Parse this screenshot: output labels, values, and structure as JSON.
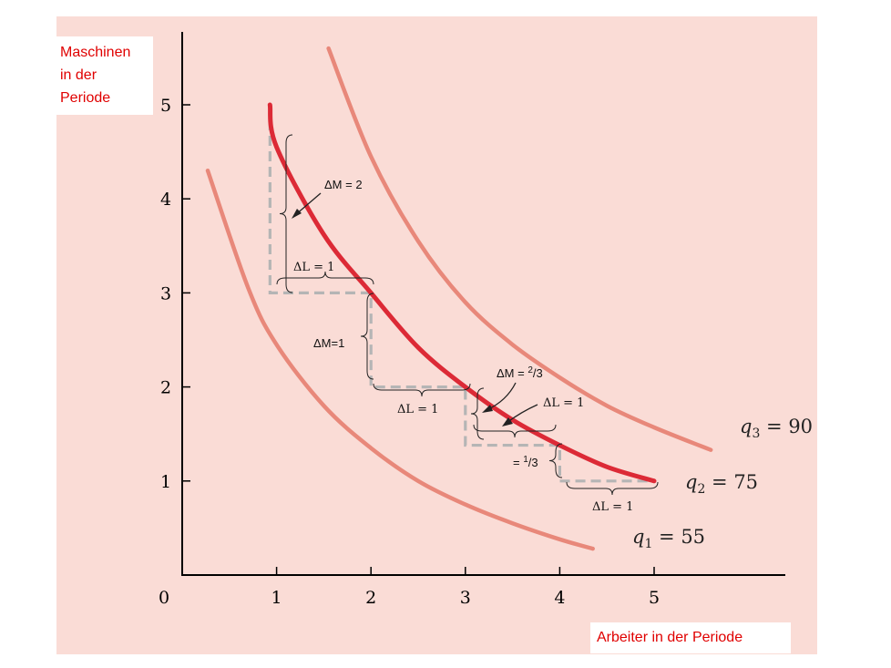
{
  "chart_data": {
    "type": "line",
    "title": "",
    "ylabel": "Maschinen\nin der\nPeriode",
    "xlabel": "Arbeiter in der Periode",
    "xlim": [
      0,
      6
    ],
    "ylim": [
      0,
      5.5
    ],
    "x_ticks": [
      "0",
      "1",
      "2",
      "3",
      "4",
      "5"
    ],
    "y_ticks": [
      "1",
      "2",
      "3",
      "4",
      "5"
    ],
    "grid": false,
    "series": [
      {
        "name": "q1 = 55",
        "label_var": "q",
        "label_sub": "1",
        "label_rest": " = 55",
        "color": "#e8887a",
        "x": [
          0.27,
          0.7,
          1.0,
          1.5,
          2.0,
          2.5,
          3.0,
          3.5,
          4.0,
          4.35
        ],
        "y": [
          4.3,
          3.05,
          2.45,
          1.8,
          1.35,
          1.0,
          0.75,
          0.55,
          0.38,
          0.28
        ]
      },
      {
        "name": "q2 = 75",
        "label_var": "q",
        "label_sub": "2",
        "label_rest": " = 75",
        "color": "#dc2a36",
        "x": [
          0.93,
          1.0,
          1.5,
          2.0,
          2.5,
          3.0,
          3.5,
          4.0,
          4.5,
          5.0
        ],
        "y": [
          5.0,
          4.55,
          3.62,
          3.0,
          2.42,
          2.0,
          1.65,
          1.38,
          1.15,
          1.0
        ]
      },
      {
        "name": "q3 = 90",
        "label_var": "q",
        "label_sub": "3",
        "label_rest": " = 90",
        "color": "#e8887a",
        "x": [
          1.55,
          2.0,
          2.5,
          3.0,
          3.5,
          4.0,
          4.5,
          5.0,
          5.6
        ],
        "y": [
          5.6,
          4.45,
          3.55,
          2.9,
          2.45,
          2.1,
          1.8,
          1.57,
          1.33
        ]
      }
    ],
    "staircase": {
      "color": "#b5b5b5",
      "points": [
        [
          0.93,
          5.0
        ],
        [
          0.93,
          3.0
        ],
        [
          2.0,
          3.0
        ],
        [
          2.0,
          2.0
        ],
        [
          3.0,
          2.0
        ],
        [
          3.0,
          1.38
        ],
        [
          4.0,
          1.38
        ],
        [
          4.0,
          1.0
        ],
        [
          5.0,
          1.0
        ]
      ]
    },
    "annotations": {
      "dM1": "ΔM = 2",
      "dL1": "ΔL = 1",
      "dM2": "ΔM=1",
      "dL2": "ΔL = 1",
      "dM3_pre": "ΔM = ",
      "dM3_num": "2",
      "dM3_den": "/3",
      "dL3": "ΔL = 1",
      "dM4_pre": "= ",
      "dM4_num": "1",
      "dM4_den": "/3",
      "dL4": "ΔL = 1"
    }
  }
}
